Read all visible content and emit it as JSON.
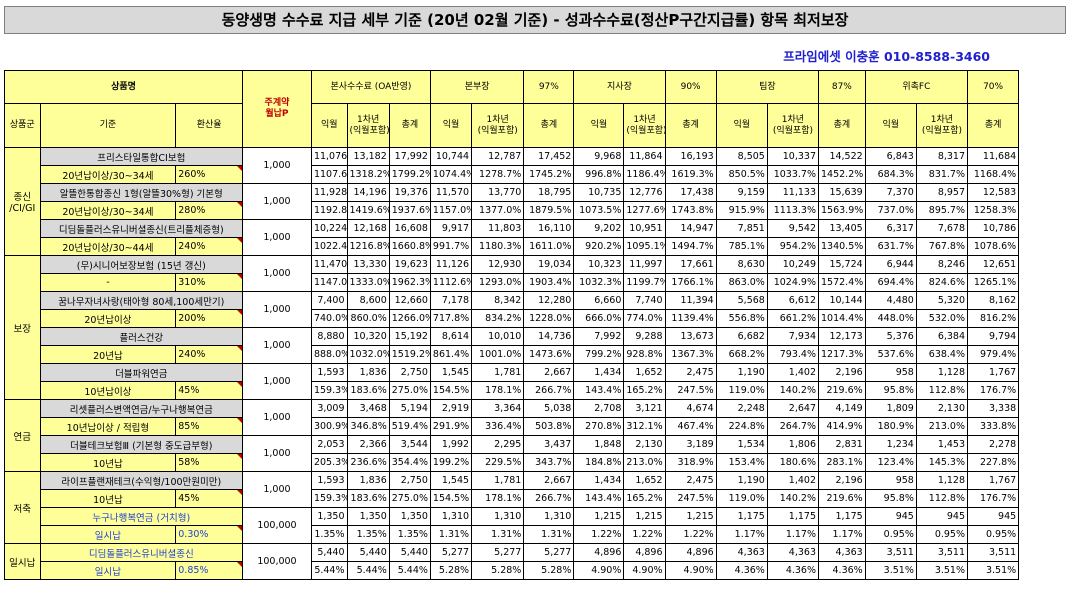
{
  "title": "동양생명 수수료 지급 세부 기준 (20년 02월 기준) - 성과수수료(정산P구간지급률) 항목 최저보장",
  "contact": "프라임에셋 이충훈 010-8588-3460",
  "header": {
    "product_name": "상품명",
    "premium_label_1": "주계약",
    "premium_label_2": "월납P",
    "groups": [
      {
        "label": "본사수수료 (OA반영)",
        "rate": ""
      },
      {
        "label": "본부장",
        "rate": "97%"
      },
      {
        "label": "지사장",
        "rate": "90%"
      },
      {
        "label": "팀장",
        "rate": "87%"
      },
      {
        "label": "위촉FC",
        "rate": "70%"
      }
    ],
    "category": "상품군",
    "criteria": "기준",
    "conversion": "환산율",
    "sub_cols": [
      "익월",
      "1차년\n(익월포함)",
      "총계"
    ]
  },
  "categories": [
    {
      "name": "종신\n/CI/GI",
      "span": 6
    },
    {
      "name": "보장",
      "span": 8
    },
    {
      "name": "연금",
      "span": 4
    },
    {
      "name": "저축",
      "span": 4
    },
    {
      "name": "일시납",
      "span": 4
    }
  ],
  "products": [
    {
      "name": "프리스타일통합CI보험",
      "criteria": "20년납이상/30~34세",
      "conv": "260%",
      "premium": "1,000",
      "blue": false,
      "amounts": [
        "11,076",
        "13,182",
        "17,992",
        "10,744",
        "12,787",
        "17,452",
        "9,968",
        "11,864",
        "16,193",
        "8,505",
        "10,337",
        "14,522",
        "6,843",
        "8,317",
        "11,684"
      ],
      "rates": [
        "1107.6%",
        "1318.2%",
        "1799.2%",
        "1074.4%",
        "1278.7%",
        "1745.2%",
        "996.8%",
        "1186.4%",
        "1619.3%",
        "850.5%",
        "1033.7%",
        "1452.2%",
        "684.3%",
        "831.7%",
        "1168.4%"
      ]
    },
    {
      "name": "알뜰한통합종신 1형(알뜰30%형) 기본형",
      "criteria": "20년납이상/30~34세",
      "conv": "280%",
      "premium": "1,000",
      "blue": false,
      "amounts": [
        "11,928",
        "14,196",
        "19,376",
        "11,570",
        "13,770",
        "18,795",
        "10,735",
        "12,776",
        "17,438",
        "9,159",
        "11,133",
        "15,639",
        "7,370",
        "8,957",
        "12,583"
      ],
      "rates": [
        "1192.8%",
        "1419.6%",
        "1937.6%",
        "1157.0%",
        "1377.0%",
        "1879.5%",
        "1073.5%",
        "1277.6%",
        "1743.8%",
        "915.9%",
        "1113.3%",
        "1563.9%",
        "737.0%",
        "895.7%",
        "1258.3%"
      ]
    },
    {
      "name": "디딤돌플러스유니버셜종신(트리플체증형)",
      "criteria": "20년납이상/30~44세",
      "conv": "240%",
      "premium": "1,000",
      "blue": false,
      "amounts": [
        "10,224",
        "12,168",
        "16,608",
        "9,917",
        "11,803",
        "16,110",
        "9,202",
        "10,951",
        "14,947",
        "7,851",
        "9,542",
        "13,405",
        "6,317",
        "7,678",
        "10,786"
      ],
      "rates": [
        "1022.4%",
        "1216.8%",
        "1660.8%",
        "991.7%",
        "1180.3%",
        "1611.0%",
        "920.2%",
        "1095.1%",
        "1494.7%",
        "785.1%",
        "954.2%",
        "1340.5%",
        "631.7%",
        "767.8%",
        "1078.6%"
      ]
    },
    {
      "name": "(무)시니어보장보험 (15년 갱신)",
      "criteria": "-",
      "conv": "310%",
      "premium": "1,000",
      "blue": false,
      "amounts": [
        "11,470",
        "13,330",
        "19,623",
        "11,126",
        "12,930",
        "19,034",
        "10,323",
        "11,997",
        "17,661",
        "8,630",
        "10,249",
        "15,724",
        "6,944",
        "8,246",
        "12,651"
      ],
      "rates": [
        "1147.0%",
        "1333.0%",
        "1962.3%",
        "1112.6%",
        "1293.0%",
        "1903.4%",
        "1032.3%",
        "1199.7%",
        "1766.1%",
        "863.0%",
        "1024.9%",
        "1572.4%",
        "694.4%",
        "824.6%",
        "1265.1%"
      ]
    },
    {
      "name": "꿈나무자녀사랑(태아형 80세,100세만기)",
      "criteria": "20년납이상",
      "conv": "200%",
      "premium": "1,000",
      "blue": false,
      "amounts": [
        "7,400",
        "8,600",
        "12,660",
        "7,178",
        "8,342",
        "12,280",
        "6,660",
        "7,740",
        "11,394",
        "5,568",
        "6,612",
        "10,144",
        "4,480",
        "5,320",
        "8,162"
      ],
      "rates": [
        "740.0%",
        "860.0%",
        "1266.0%",
        "717.8%",
        "834.2%",
        "1228.0%",
        "666.0%",
        "774.0%",
        "1139.4%",
        "556.8%",
        "661.2%",
        "1014.4%",
        "448.0%",
        "532.0%",
        "816.2%"
      ]
    },
    {
      "name": "플러스건강",
      "criteria": "20년납",
      "conv": "240%",
      "premium": "1,000",
      "blue": false,
      "amounts": [
        "8,880",
        "10,320",
        "15,192",
        "8,614",
        "10,010",
        "14,736",
        "7,992",
        "9,288",
        "13,673",
        "6,682",
        "7,934",
        "12,173",
        "5,376",
        "6,384",
        "9,794"
      ],
      "rates": [
        "888.0%",
        "1032.0%",
        "1519.2%",
        "861.4%",
        "1001.0%",
        "1473.6%",
        "799.2%",
        "928.8%",
        "1367.3%",
        "668.2%",
        "793.4%",
        "1217.3%",
        "537.6%",
        "638.4%",
        "979.4%"
      ]
    },
    {
      "name": "더블파워연금",
      "criteria": "10년납이상",
      "conv": "45%",
      "premium": "1,000",
      "blue": false,
      "amounts": [
        "1,593",
        "1,836",
        "2,750",
        "1,545",
        "1,781",
        "2,667",
        "1,434",
        "1,652",
        "2,475",
        "1,190",
        "1,402",
        "2,196",
        "958",
        "1,128",
        "1,767"
      ],
      "rates": [
        "159.3%",
        "183.6%",
        "275.0%",
        "154.5%",
        "178.1%",
        "266.7%",
        "143.4%",
        "165.2%",
        "247.5%",
        "119.0%",
        "140.2%",
        "219.6%",
        "95.8%",
        "112.8%",
        "176.7%"
      ]
    },
    {
      "name": "리셋플러스변액연금/누구나행복연금",
      "criteria": "10년납이상 / 적립형",
      "conv": "85%",
      "premium": "1,000",
      "blue": false,
      "amounts": [
        "3,009",
        "3,468",
        "5,194",
        "2,919",
        "3,364",
        "5,038",
        "2,708",
        "3,121",
        "4,674",
        "2,248",
        "2,647",
        "4,149",
        "1,809",
        "2,130",
        "3,338"
      ],
      "rates": [
        "300.9%",
        "346.8%",
        "519.4%",
        "291.9%",
        "336.4%",
        "503.8%",
        "270.8%",
        "312.1%",
        "467.4%",
        "224.8%",
        "264.7%",
        "414.9%",
        "180.9%",
        "213.0%",
        "333.8%"
      ]
    },
    {
      "name": "더블테크보험Ⅲ (기본형 중도급부형)",
      "criteria": "10년납",
      "conv": "58%",
      "premium": "1,000",
      "blue": false,
      "amounts": [
        "2,053",
        "2,366",
        "3,544",
        "1,992",
        "2,295",
        "3,437",
        "1,848",
        "2,130",
        "3,189",
        "1,534",
        "1,806",
        "2,831",
        "1,234",
        "1,453",
        "2,278"
      ],
      "rates": [
        "205.3%",
        "236.6%",
        "354.4%",
        "199.2%",
        "229.5%",
        "343.7%",
        "184.8%",
        "213.0%",
        "318.9%",
        "153.4%",
        "180.6%",
        "283.1%",
        "123.4%",
        "145.3%",
        "227.8%"
      ]
    },
    {
      "name": "라이프플랜재테크(수익형/100만원미만)",
      "criteria": "10년납",
      "conv": "45%",
      "premium": "1,000",
      "blue": false,
      "amounts": [
        "1,593",
        "1,836",
        "2,750",
        "1,545",
        "1,781",
        "2,667",
        "1,434",
        "1,652",
        "2,475",
        "1,190",
        "1,402",
        "2,196",
        "958",
        "1,128",
        "1,767"
      ],
      "rates": [
        "159.3%",
        "183.6%",
        "275.0%",
        "154.5%",
        "178.1%",
        "266.7%",
        "143.4%",
        "165.2%",
        "247.5%",
        "119.0%",
        "140.2%",
        "219.6%",
        "95.8%",
        "112.8%",
        "176.7%"
      ]
    },
    {
      "name": "누구나행복연금 (거치형)",
      "criteria": "일시납",
      "conv": "0.30%",
      "premium": "100,000",
      "blue": true,
      "amounts": [
        "1,350",
        "1,350",
        "1,350",
        "1,310",
        "1,310",
        "1,310",
        "1,215",
        "1,215",
        "1,215",
        "1,175",
        "1,175",
        "1,175",
        "945",
        "945",
        "945"
      ],
      "rates": [
        "1.35%",
        "1.35%",
        "1.35%",
        "1.31%",
        "1.31%",
        "1.31%",
        "1.22%",
        "1.22%",
        "1.22%",
        "1.17%",
        "1.17%",
        "1.17%",
        "0.95%",
        "0.95%",
        "0.95%"
      ]
    },
    {
      "name": "디딤돌플러스유니버셜종신",
      "criteria": "일시납",
      "conv": "0.85%",
      "premium": "100,000",
      "blue": true,
      "amounts": [
        "5,440",
        "5,440",
        "5,440",
        "5,277",
        "5,277",
        "5,277",
        "4,896",
        "4,896",
        "4,896",
        "4,363",
        "4,363",
        "4,363",
        "3,511",
        "3,511",
        "3,511"
      ],
      "rates": [
        "5.44%",
        "5.44%",
        "5.44%",
        "5.28%",
        "5.28%",
        "5.28%",
        "4.90%",
        "4.90%",
        "4.90%",
        "4.36%",
        "4.36%",
        "4.36%",
        "3.51%",
        "3.51%",
        "3.51%"
      ]
    }
  ]
}
